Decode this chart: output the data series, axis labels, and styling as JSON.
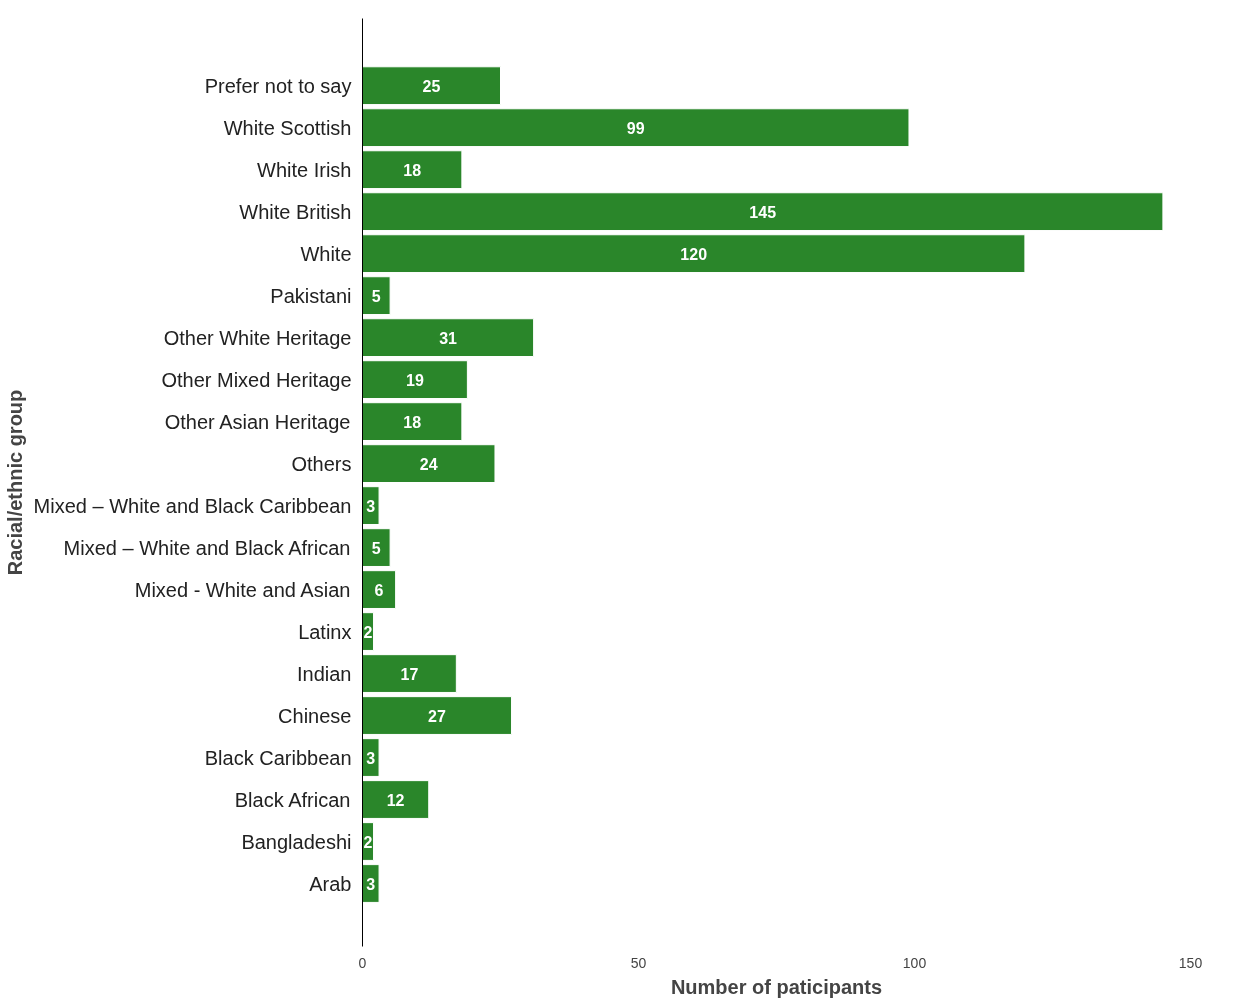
{
  "chart_data": {
    "type": "bar",
    "orientation": "horizontal",
    "xlabel": "Number of paticipants",
    "ylabel": "Racial/ethnic group",
    "categories": [
      "Prefer not to say",
      "White Scottish",
      "White Irish",
      "White British",
      "White",
      "Pakistani",
      "Other White Heritage",
      "Other Mixed Heritage",
      "Other Asian Heritage",
      "Others",
      "Mixed – White and Black Caribbean",
      "Mixed – White and Black African",
      "Mixed - White and Asian",
      "Latinx",
      "Indian",
      "Chinese",
      "Black Caribbean",
      "Black African",
      "Bangladeshi",
      "Arab"
    ],
    "values": [
      25,
      99,
      18,
      145,
      120,
      5,
      31,
      19,
      18,
      24,
      3,
      5,
      6,
      2,
      17,
      27,
      3,
      12,
      2,
      3
    ],
    "color": "#2a862a",
    "xlim": [
      0,
      150
    ],
    "xticks": [
      0,
      50,
      100,
      150
    ],
    "data_labels": true,
    "grid": false
  }
}
